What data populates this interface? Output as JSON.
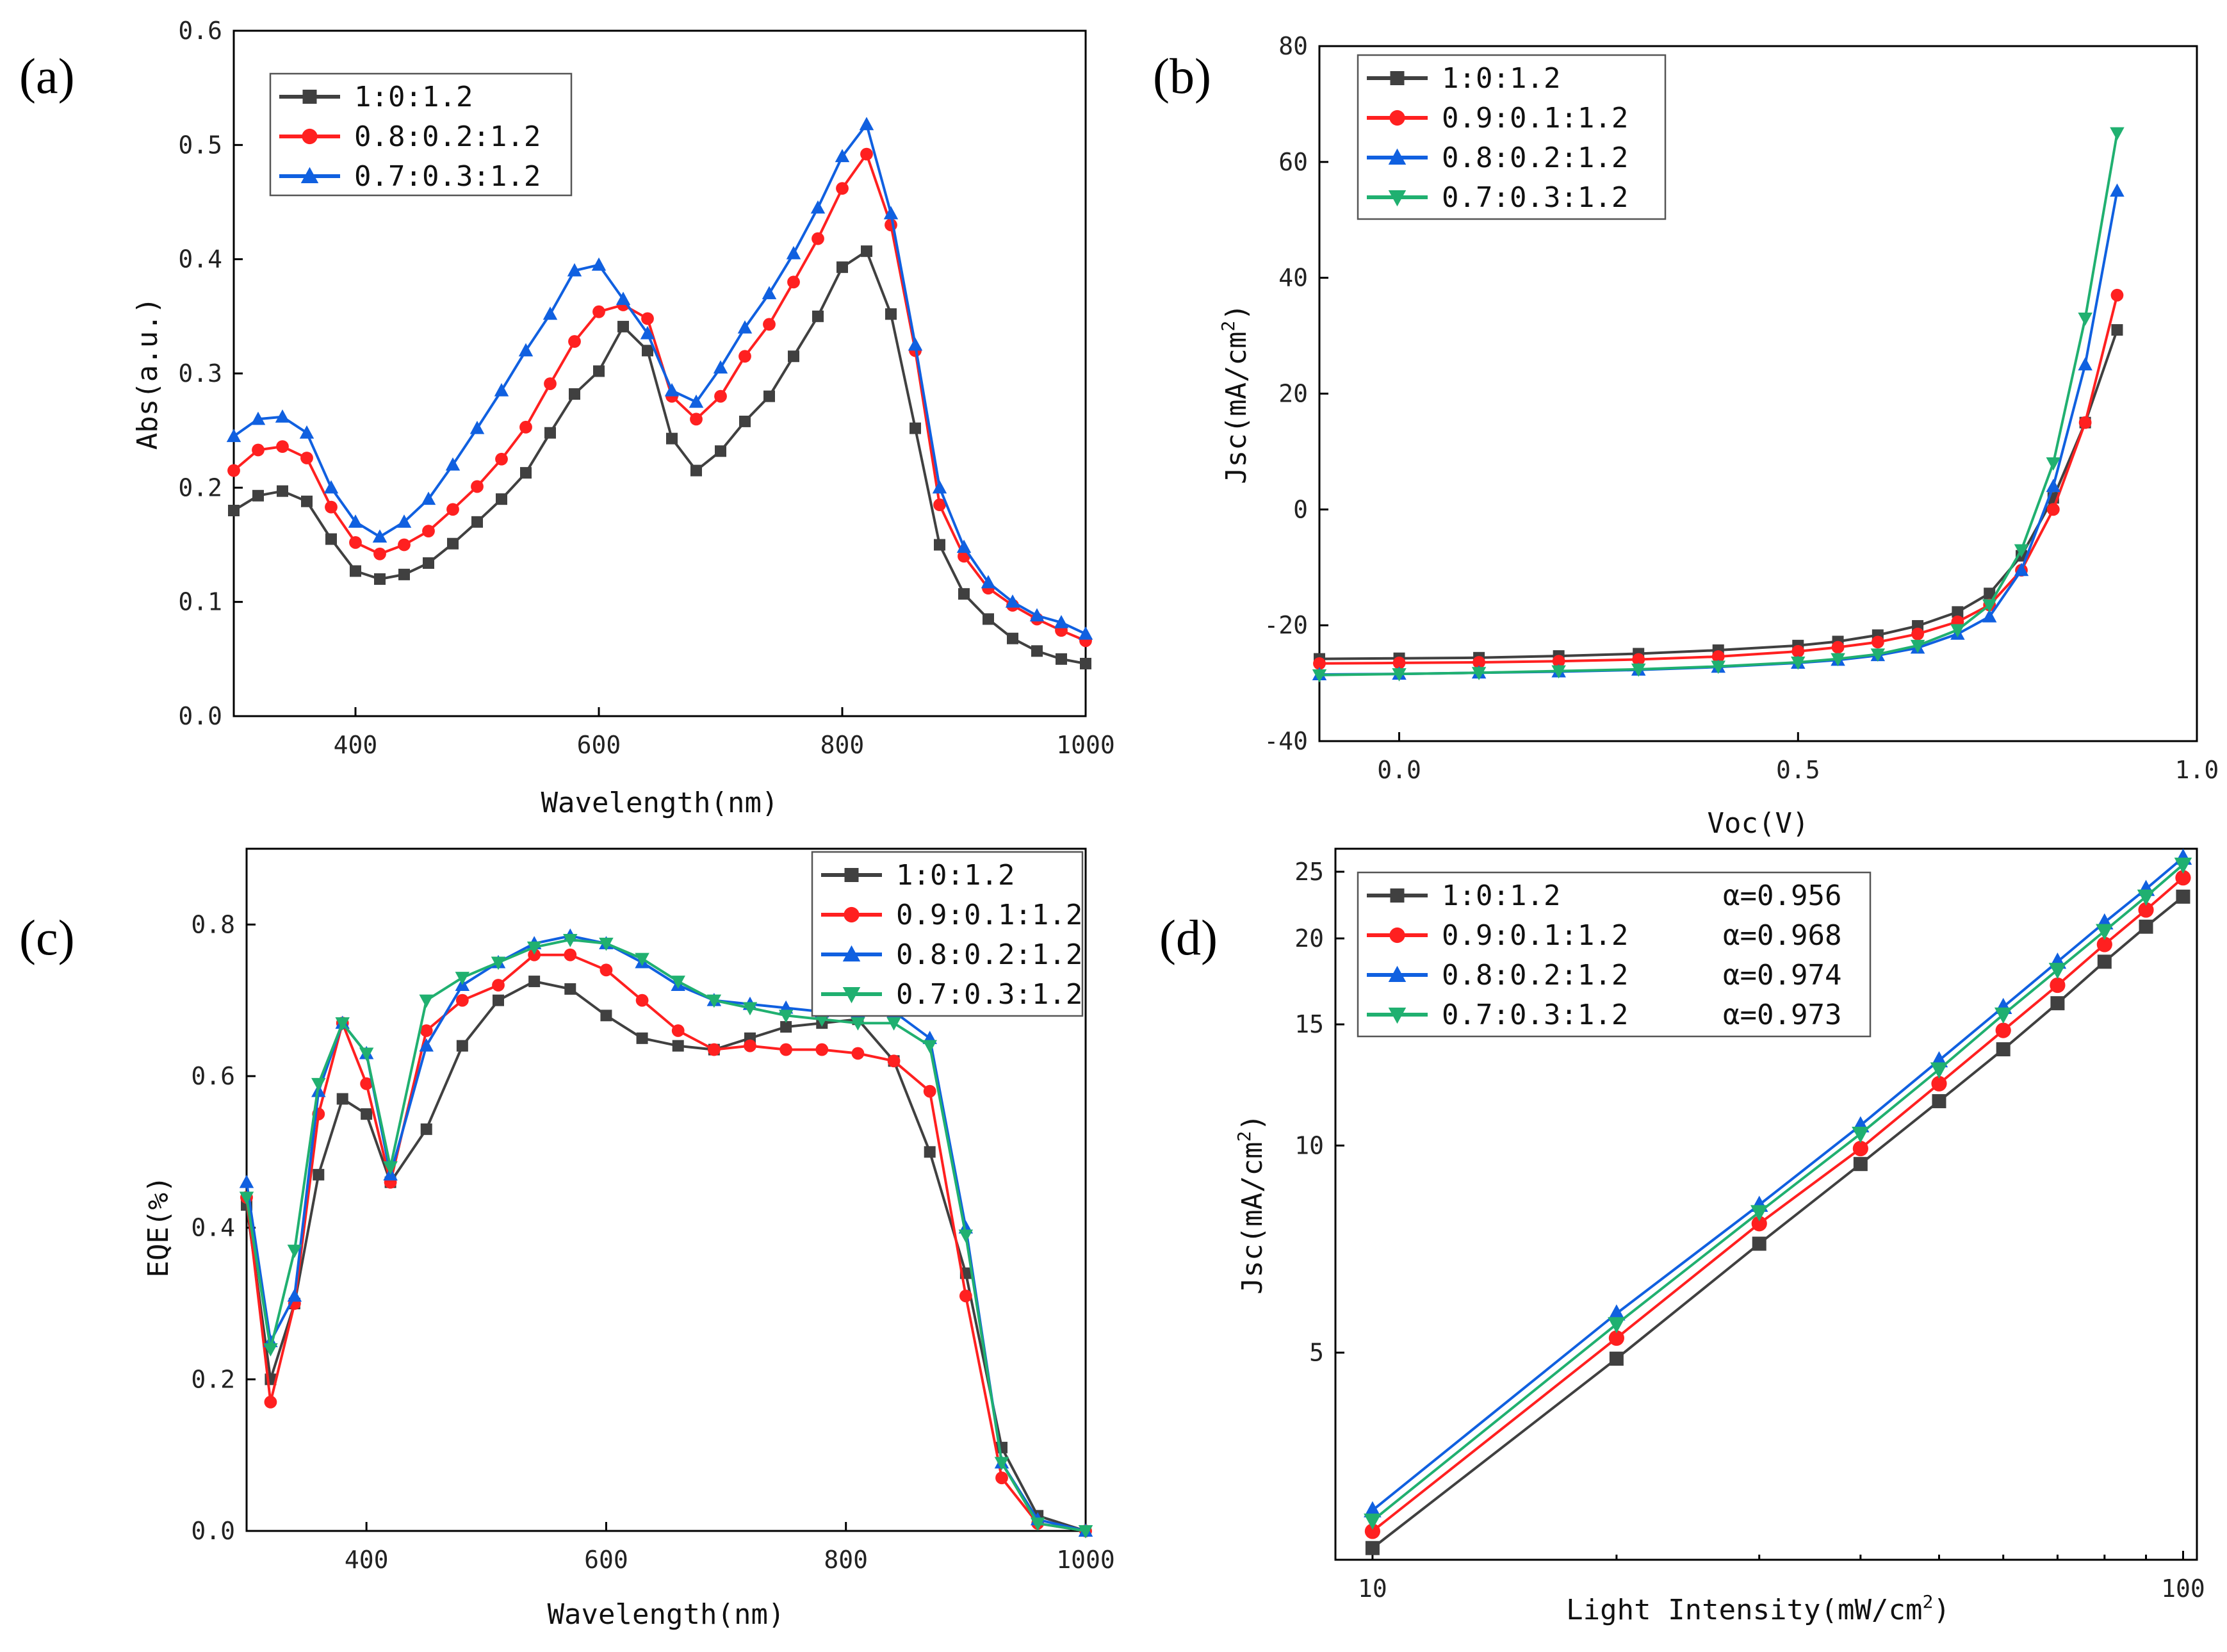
{
  "figure": {
    "panels": [
      "(a)",
      "(b)",
      "(c)",
      "(d)"
    ]
  },
  "chart_data": [
    {
      "id": "a",
      "panel_label": "(a)",
      "type": "line",
      "xlabel": "Wavelength(nm)",
      "ylabel": "Abs(a.u.)",
      "xlim": [
        300,
        1000
      ],
      "ylim": [
        0.0,
        0.6
      ],
      "xticks": [
        400,
        600,
        800,
        1000
      ],
      "yticks": [
        0.0,
        0.1,
        0.2,
        0.3,
        0.4,
        0.5,
        0.6
      ],
      "ytick_labels": [
        "0.0",
        "0.1",
        "0.2",
        "0.3",
        "0.4",
        "0.5",
        "0.6"
      ],
      "xtick_labels": [
        "400",
        "600",
        "800",
        "1000"
      ],
      "legend_position": "top-left",
      "series": [
        {
          "name": "1:0:1.2",
          "color": "#404040",
          "marker": "square",
          "x": [
            300,
            320,
            340,
            360,
            380,
            400,
            420,
            440,
            460,
            480,
            500,
            520,
            540,
            560,
            580,
            600,
            620,
            640,
            660,
            680,
            700,
            720,
            740,
            760,
            780,
            800,
            820,
            840,
            860,
            880,
            900,
            920,
            940,
            960,
            980,
            1000
          ],
          "y": [
            0.18,
            0.193,
            0.197,
            0.188,
            0.155,
            0.127,
            0.12,
            0.124,
            0.134,
            0.151,
            0.17,
            0.19,
            0.213,
            0.248,
            0.282,
            0.302,
            0.341,
            0.32,
            0.243,
            0.215,
            0.232,
            0.258,
            0.28,
            0.315,
            0.35,
            0.393,
            0.407,
            0.352,
            0.252,
            0.15,
            0.107,
            0.085,
            0.068,
            0.057,
            0.05,
            0.046
          ]
        },
        {
          "name": "0.8:0.2:1.2",
          "color": "#ff2020",
          "marker": "circle",
          "x": [
            300,
            320,
            340,
            360,
            380,
            400,
            420,
            440,
            460,
            480,
            500,
            520,
            540,
            560,
            580,
            600,
            620,
            640,
            660,
            680,
            700,
            720,
            740,
            760,
            780,
            800,
            820,
            840,
            860,
            880,
            900,
            920,
            940,
            960,
            980,
            1000
          ],
          "y": [
            0.215,
            0.233,
            0.236,
            0.226,
            0.183,
            0.152,
            0.142,
            0.15,
            0.162,
            0.181,
            0.201,
            0.225,
            0.253,
            0.291,
            0.328,
            0.354,
            0.36,
            0.348,
            0.28,
            0.26,
            0.28,
            0.315,
            0.343,
            0.38,
            0.418,
            0.462,
            0.492,
            0.43,
            0.32,
            0.185,
            0.14,
            0.112,
            0.097,
            0.085,
            0.075,
            0.066
          ]
        },
        {
          "name": "0.7:0.3:1.2",
          "color": "#1060e0",
          "marker": "triangle",
          "x": [
            300,
            320,
            340,
            360,
            380,
            400,
            420,
            440,
            460,
            480,
            500,
            520,
            540,
            560,
            580,
            600,
            620,
            640,
            660,
            680,
            700,
            720,
            740,
            760,
            780,
            800,
            820,
            840,
            860,
            880,
            900,
            920,
            940,
            960,
            980,
            1000
          ],
          "y": [
            0.245,
            0.26,
            0.262,
            0.248,
            0.2,
            0.17,
            0.157,
            0.17,
            0.19,
            0.22,
            0.252,
            0.285,
            0.32,
            0.352,
            0.39,
            0.395,
            0.365,
            0.335,
            0.285,
            0.275,
            0.305,
            0.34,
            0.37,
            0.405,
            0.445,
            0.49,
            0.518,
            0.44,
            0.325,
            0.2,
            0.148,
            0.117,
            0.1,
            0.088,
            0.082,
            0.072
          ]
        }
      ]
    },
    {
      "id": "b",
      "panel_label": "(b)",
      "type": "line",
      "xlabel": "Voc(V)",
      "ylabel": "Jsc(mA/cm²)",
      "ylabel_prefix": "Jsc(mA/cm",
      "ylabel_sup": "2",
      "ylabel_suffix": ")",
      "xlim": [
        -0.1,
        1.0
      ],
      "ylim": [
        -40,
        80
      ],
      "xticks": [
        0.0,
        0.5,
        1.0
      ],
      "xtick_labels": [
        "0.0",
        "0.5",
        "1.0"
      ],
      "yticks": [
        -40,
        -20,
        0,
        20,
        40,
        60,
        80
      ],
      "ytick_labels": [
        "-40",
        "-20",
        "0",
        "20",
        "40",
        "60",
        "80"
      ],
      "legend_position": "top-left",
      "series": [
        {
          "name": "1:0:1.2",
          "color": "#404040",
          "marker": "square",
          "x": [
            -0.1,
            0.0,
            0.1,
            0.2,
            0.3,
            0.4,
            0.5,
            0.55,
            0.6,
            0.65,
            0.7,
            0.74,
            0.78,
            0.82,
            0.86,
            0.9
          ],
          "y": [
            -25.8,
            -25.7,
            -25.6,
            -25.3,
            -24.9,
            -24.3,
            -23.5,
            -22.8,
            -21.7,
            -20.1,
            -17.7,
            -14.5,
            -8.0,
            2.0,
            15.0,
            31.0
          ]
        },
        {
          "name": "0.9:0.1:1.2",
          "color": "#ff2020",
          "marker": "circle",
          "x": [
            -0.1,
            0.0,
            0.1,
            0.2,
            0.3,
            0.4,
            0.5,
            0.55,
            0.6,
            0.65,
            0.7,
            0.74,
            0.78,
            0.82,
            0.86,
            0.9
          ],
          "y": [
            -26.6,
            -26.5,
            -26.4,
            -26.2,
            -25.9,
            -25.4,
            -24.5,
            -23.8,
            -22.9,
            -21.5,
            -19.4,
            -16.5,
            -10.5,
            0.0,
            15.0,
            37.0
          ]
        },
        {
          "name": "0.8:0.2:1.2",
          "color": "#1060e0",
          "marker": "triangle",
          "x": [
            -0.1,
            0.0,
            0.1,
            0.2,
            0.3,
            0.4,
            0.5,
            0.55,
            0.6,
            0.65,
            0.7,
            0.74,
            0.78,
            0.82,
            0.86,
            0.9
          ],
          "y": [
            -28.5,
            -28.4,
            -28.2,
            -28.0,
            -27.7,
            -27.2,
            -26.5,
            -26.0,
            -25.2,
            -23.9,
            -21.5,
            -18.5,
            -10.5,
            4.0,
            25.0,
            55.0
          ]
        },
        {
          "name": "0.7:0.3:1.2",
          "color": "#20b070",
          "marker": "down-triangle",
          "x": [
            -0.1,
            0.0,
            0.1,
            0.2,
            0.3,
            0.4,
            0.5,
            0.55,
            0.6,
            0.65,
            0.7,
            0.74,
            0.78,
            0.82,
            0.86,
            0.9
          ],
          "y": [
            -28.6,
            -28.4,
            -28.2,
            -27.9,
            -27.6,
            -27.1,
            -26.4,
            -25.8,
            -25.0,
            -23.5,
            -20.8,
            -16.5,
            -7.0,
            8.0,
            33.0,
            65.0
          ]
        }
      ]
    },
    {
      "id": "c",
      "panel_label": "(c)",
      "type": "line",
      "xlabel": "Wavelength(nm)",
      "ylabel": "EQE(%)",
      "xlim": [
        300,
        1000
      ],
      "ylim": [
        0.0,
        0.9
      ],
      "xticks": [
        400,
        600,
        800,
        1000
      ],
      "xtick_labels": [
        "400",
        "600",
        "800",
        "1000"
      ],
      "yticks": [
        0.0,
        0.2,
        0.4,
        0.6,
        0.8
      ],
      "ytick_labels": [
        "0.0",
        "0.2",
        "0.4",
        "0.6",
        "0.8"
      ],
      "legend_position": "top-right",
      "series": [
        {
          "name": "1:0:1.2",
          "color": "#404040",
          "marker": "square",
          "x": [
            300,
            320,
            340,
            360,
            380,
            400,
            420,
            450,
            480,
            510,
            540,
            570,
            600,
            630,
            660,
            690,
            720,
            750,
            780,
            810,
            840,
            870,
            900,
            930,
            960,
            1000
          ],
          "y": [
            0.43,
            0.2,
            0.3,
            0.47,
            0.57,
            0.55,
            0.46,
            0.53,
            0.64,
            0.7,
            0.725,
            0.715,
            0.68,
            0.65,
            0.64,
            0.635,
            0.65,
            0.665,
            0.67,
            0.675,
            0.62,
            0.5,
            0.34,
            0.11,
            0.02,
            0.0
          ]
        },
        {
          "name": "0.9:0.1:1.2",
          "color": "#ff2020",
          "marker": "circle",
          "x": [
            300,
            320,
            340,
            360,
            380,
            400,
            420,
            450,
            480,
            510,
            540,
            570,
            600,
            630,
            660,
            690,
            720,
            750,
            780,
            810,
            840,
            870,
            900,
            930,
            960,
            1000
          ],
          "y": [
            0.44,
            0.17,
            0.3,
            0.55,
            0.67,
            0.59,
            0.46,
            0.66,
            0.7,
            0.72,
            0.76,
            0.76,
            0.74,
            0.7,
            0.66,
            0.635,
            0.64,
            0.635,
            0.635,
            0.63,
            0.62,
            0.58,
            0.31,
            0.07,
            0.01,
            0.0
          ]
        },
        {
          "name": "0.8:0.2:1.2",
          "color": "#1060e0",
          "marker": "triangle",
          "x": [
            300,
            320,
            340,
            360,
            380,
            400,
            420,
            450,
            480,
            510,
            540,
            570,
            600,
            630,
            660,
            690,
            720,
            750,
            780,
            810,
            840,
            870,
            900,
            930,
            960,
            1000
          ],
          "y": [
            0.46,
            0.25,
            0.31,
            0.58,
            0.67,
            0.63,
            0.47,
            0.64,
            0.72,
            0.75,
            0.775,
            0.785,
            0.775,
            0.75,
            0.72,
            0.7,
            0.695,
            0.69,
            0.685,
            0.685,
            0.685,
            0.65,
            0.4,
            0.09,
            0.015,
            0.0
          ]
        },
        {
          "name": "0.7:0.3:1.2",
          "color": "#20b070",
          "marker": "down-triangle",
          "x": [
            300,
            320,
            340,
            360,
            380,
            400,
            420,
            450,
            480,
            510,
            540,
            570,
            600,
            630,
            660,
            690,
            720,
            750,
            780,
            810,
            840,
            870,
            900,
            930,
            960,
            1000
          ],
          "y": [
            0.44,
            0.24,
            0.37,
            0.59,
            0.67,
            0.63,
            0.48,
            0.7,
            0.73,
            0.75,
            0.77,
            0.78,
            0.775,
            0.755,
            0.725,
            0.7,
            0.69,
            0.68,
            0.675,
            0.67,
            0.67,
            0.64,
            0.39,
            0.09,
            0.01,
            0.0
          ]
        }
      ]
    },
    {
      "id": "d",
      "panel_label": "(d)",
      "type": "line",
      "scale": "log-log",
      "xlabel": "Light Intensity(mW/cm²)",
      "xlabel_prefix": "Light Intensity(mW/cm",
      "xlabel_sup": "2",
      "xlabel_suffix": ")",
      "ylabel": "Jsc(mA/cm²)",
      "ylabel_prefix": "Jsc(mA/cm",
      "ylabel_sup": "2",
      "ylabel_suffix": ")",
      "xlim": [
        9,
        104
      ],
      "ylim": [
        2.5,
        27
      ],
      "xticks": [
        10,
        100
      ],
      "xtick_labels": [
        "10",
        "100"
      ],
      "yticks": [
        5,
        10,
        15,
        20,
        25
      ],
      "ytick_labels": [
        "5",
        "10",
        "15",
        "20",
        "25"
      ],
      "legend_position": "top-left",
      "series": [
        {
          "name": "1:0:1.2",
          "alpha": "α=0.956",
          "color": "#404040",
          "marker": "square",
          "x": [
            10,
            20,
            30,
            40,
            50,
            60,
            70,
            80,
            90,
            100
          ],
          "y": [
            2.6,
            4.9,
            7.2,
            9.4,
            11.6,
            13.8,
            16.1,
            18.5,
            20.8,
            23.0
          ]
        },
        {
          "name": "0.9:0.1:1.2",
          "alpha": "α=0.968",
          "color": "#ff2020",
          "marker": "circle",
          "x": [
            10,
            20,
            30,
            40,
            50,
            60,
            70,
            80,
            90,
            100
          ],
          "y": [
            2.75,
            5.25,
            7.7,
            9.9,
            12.3,
            14.7,
            17.1,
            19.6,
            22.0,
            24.5
          ]
        },
        {
          "name": "0.8:0.2:1.2",
          "alpha": "α=0.974",
          "color": "#1060e0",
          "marker": "triangle",
          "x": [
            10,
            20,
            30,
            40,
            50,
            60,
            70,
            80,
            90,
            100
          ],
          "y": [
            2.95,
            5.7,
            8.2,
            10.7,
            13.3,
            15.9,
            18.5,
            21.1,
            23.6,
            26.2
          ]
        },
        {
          "name": "0.7:0.3:1.2",
          "alpha": "α=0.973",
          "color": "#20b070",
          "marker": "down-triangle",
          "x": [
            10,
            20,
            30,
            40,
            50,
            60,
            70,
            80,
            90,
            100
          ],
          "y": [
            2.85,
            5.5,
            8.0,
            10.4,
            12.9,
            15.5,
            18.0,
            20.5,
            23.0,
            25.6
          ]
        }
      ]
    }
  ]
}
